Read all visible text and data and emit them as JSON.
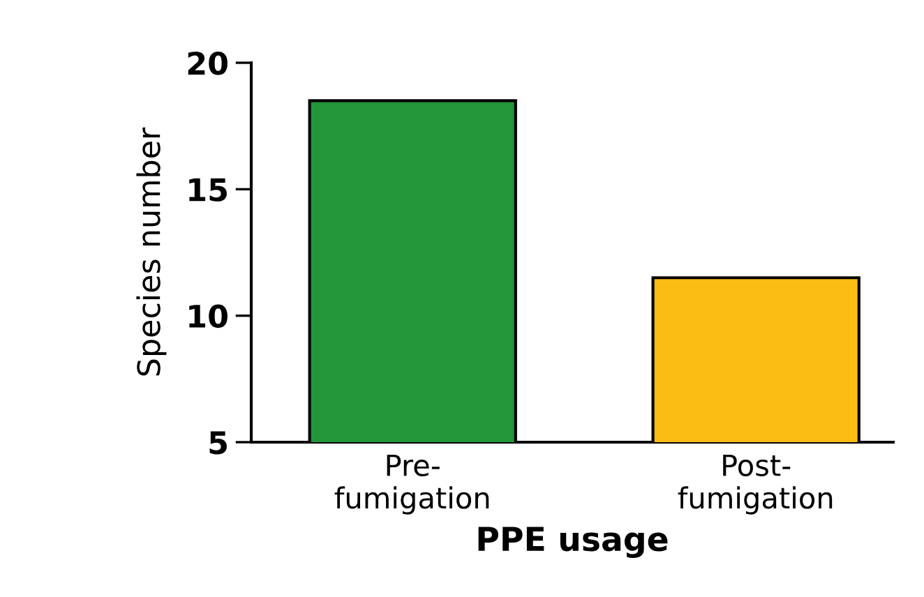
{
  "chart_data": {
    "type": "bar",
    "xlabel": "PPE usage",
    "ylabel": "Species number",
    "categories": [
      "Pre-\nfumigation",
      "Post-\nfumigation"
    ],
    "values": [
      18.5,
      11.5
    ],
    "colors": [
      "#23963a",
      "#fbbd14"
    ],
    "ylim": [
      5,
      20
    ],
    "yticks": [
      5,
      10,
      15,
      20
    ],
    "grid": false,
    "legend": false
  }
}
